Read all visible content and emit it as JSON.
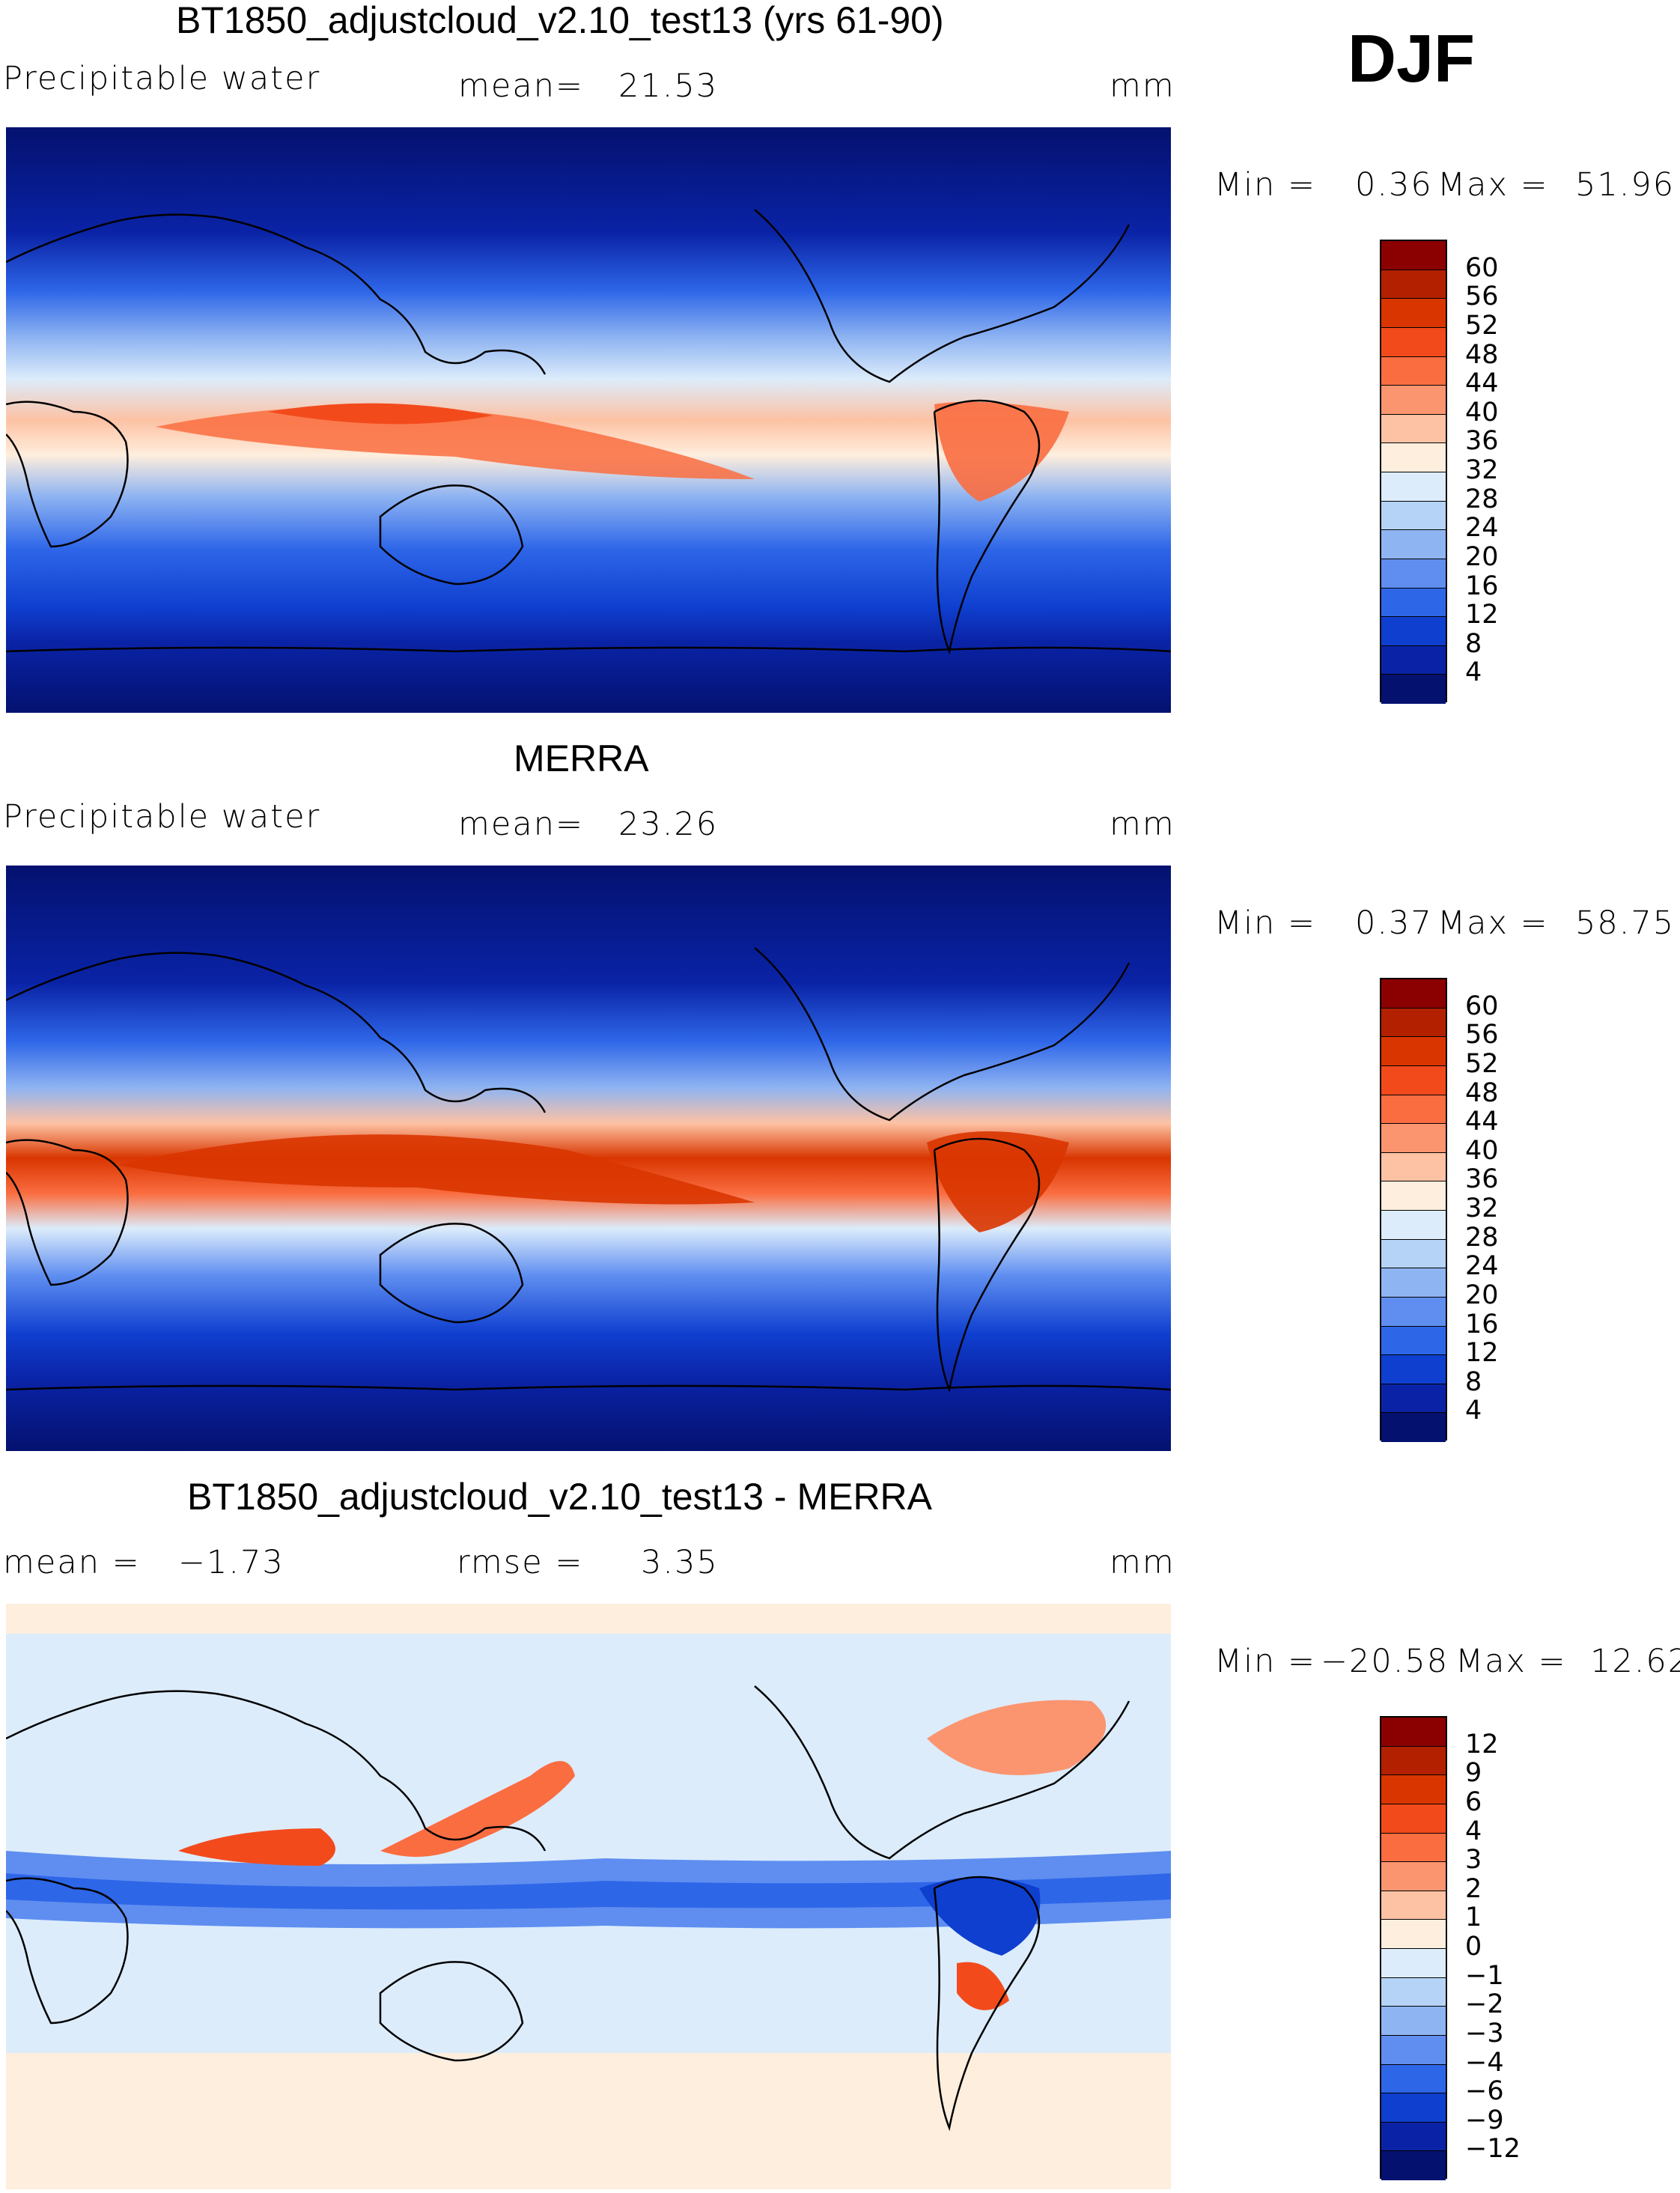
{
  "season": "DJF",
  "panels": [
    {
      "title": "BT1850_adjustcloud_v2.10_test13 (yrs 61-90)",
      "variable": "Precipitable water",
      "stat_label": "mean=",
      "stat_value": "21.53",
      "units": "mm",
      "min_label": "Min =",
      "min_value": "0.36",
      "max_label": "Max =",
      "max_value": "51.96",
      "colorbar": {
        "levels": [
          "60",
          "56",
          "52",
          "48",
          "44",
          "40",
          "36",
          "32",
          "28",
          "24",
          "20",
          "16",
          "12",
          "8",
          "4"
        ],
        "colors": [
          "#8b0000",
          "#b22000",
          "#d93500",
          "#f34a1c",
          "#fa6d40",
          "#fb9570",
          "#fdc2a4",
          "#feeedd",
          "#dcecfb",
          "#b5d3f6",
          "#8fb4f2",
          "#5f8ef0",
          "#2e66e8",
          "#0f3fcf",
          "#0a23a6",
          "#04116f"
        ]
      }
    },
    {
      "title": "MERRA",
      "variable": "Precipitable water",
      "stat_label": "mean=",
      "stat_value": "23.26",
      "units": "mm",
      "min_label": "Min =",
      "min_value": "0.37",
      "max_label": "Max =",
      "max_value": "58.75",
      "colorbar": {
        "levels": [
          "60",
          "56",
          "52",
          "48",
          "44",
          "40",
          "36",
          "32",
          "28",
          "24",
          "20",
          "16",
          "12",
          "8",
          "4"
        ],
        "colors": [
          "#8b0000",
          "#b22000",
          "#d93500",
          "#f34a1c",
          "#fa6d40",
          "#fb9570",
          "#fdc2a4",
          "#feeedd",
          "#dcecfb",
          "#b5d3f6",
          "#8fb4f2",
          "#5f8ef0",
          "#2e66e8",
          "#0f3fcf",
          "#0a23a6",
          "#04116f"
        ]
      }
    },
    {
      "title": "BT1850_adjustcloud_v2.10_test13 - MERRA",
      "stat_label": "mean =",
      "stat_value": "−1.73",
      "rmse_label": "rmse =",
      "rmse_value": "3.35",
      "units": "mm",
      "min_label": "Min =",
      "min_value": "−20.58",
      "max_label": "Max =",
      "max_value": "12.62",
      "colorbar": {
        "levels": [
          "12",
          "9",
          "6",
          "4",
          "3",
          "2",
          "1",
          "0",
          "−1",
          "−2",
          "−3",
          "−4",
          "−6",
          "−9",
          "−12"
        ],
        "colors": [
          "#8b0000",
          "#b22000",
          "#d93500",
          "#f34a1c",
          "#fa6d40",
          "#fb9570",
          "#fdc2a4",
          "#feeedd",
          "#dcecfb",
          "#b5d3f6",
          "#8fb4f2",
          "#5f8ef0",
          "#2e66e8",
          "#0f3fcf",
          "#0a23a6",
          "#04116f"
        ]
      }
    }
  ]
}
